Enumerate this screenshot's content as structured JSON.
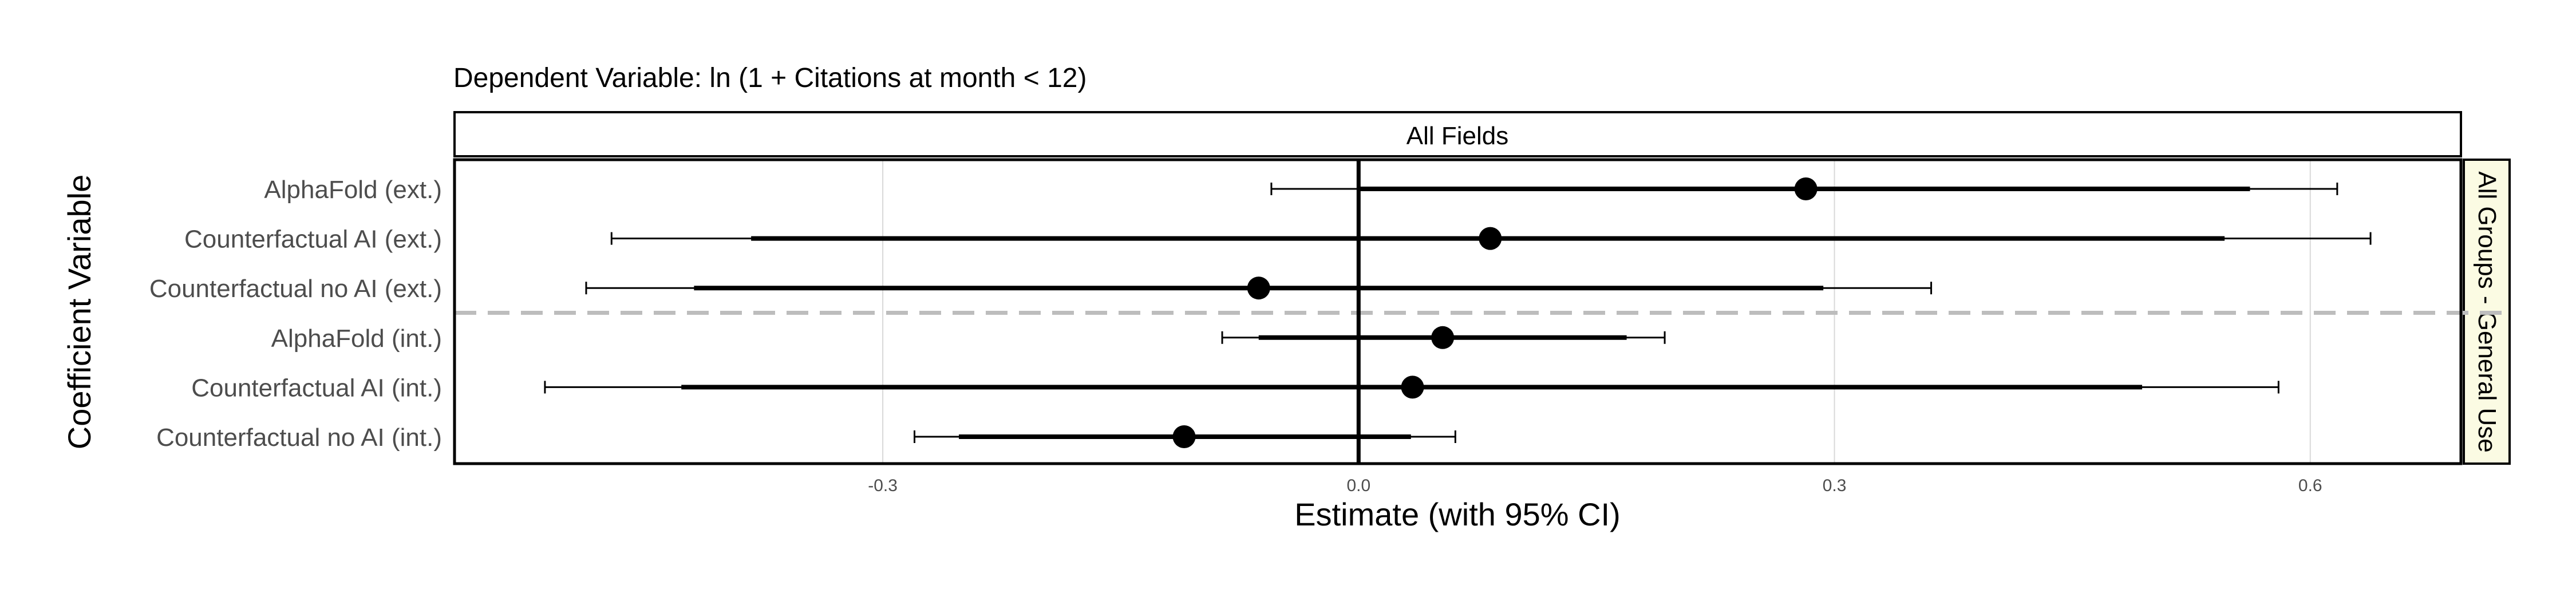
{
  "chart_data": {
    "type": "coefficient-plot",
    "title": "Dependent Variable: ln (1 + Citations at month < 12)",
    "facet_top": "All Fields",
    "facet_right": "All Groups - General Use",
    "xlabel": "Estimate (with 95% CI)",
    "ylabel": "Coefficient Variable",
    "x_ticks": [
      -0.3,
      0.0,
      0.3,
      0.6
    ],
    "x_tick_labels": [
      "-0.3",
      "0.0",
      "0.3",
      "0.6"
    ],
    "xlim": [
      -0.57,
      0.695
    ],
    "reference_line": 0,
    "grid": true,
    "separator_after_row": 3,
    "rows": [
      {
        "label": "AlphaFold (ext.)",
        "estimate": 0.282,
        "ci_inner": [
          0.0,
          0.562
        ],
        "ci_outer": [
          -0.055,
          0.617
        ]
      },
      {
        "label": "Counterfactual AI (ext.)",
        "estimate": 0.083,
        "ci_inner": [
          -0.383,
          0.546
        ],
        "ci_outer": [
          -0.471,
          0.638
        ]
      },
      {
        "label": "Counterfactual no AI (ext.)",
        "estimate": -0.063,
        "ci_inner": [
          -0.419,
          0.293
        ],
        "ci_outer": [
          -0.487,
          0.361
        ]
      },
      {
        "label": "AlphaFold (int.)",
        "estimate": 0.053,
        "ci_inner": [
          -0.063,
          0.169
        ],
        "ci_outer": [
          -0.086,
          0.193
        ]
      },
      {
        "label": "Counterfactual AI (int.)",
        "estimate": 0.034,
        "ci_inner": [
          -0.427,
          0.494
        ],
        "ci_outer": [
          -0.513,
          0.58
        ]
      },
      {
        "label": "Counterfactual no AI (int.)",
        "estimate": -0.11,
        "ci_inner": [
          -0.252,
          0.033
        ],
        "ci_outer": [
          -0.28,
          0.061
        ]
      }
    ]
  }
}
